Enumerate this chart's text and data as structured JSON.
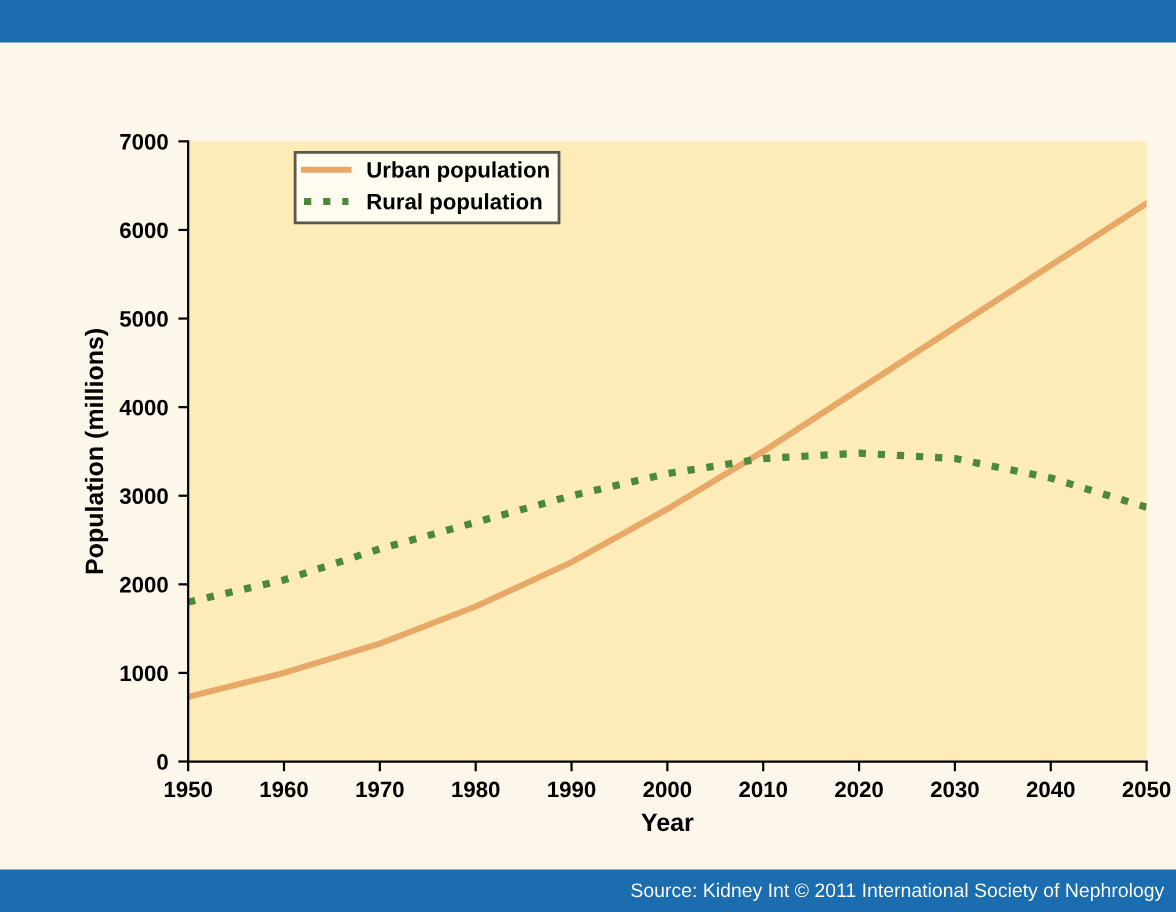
{
  "chart_data": {
    "type": "line",
    "xlabel": "Year",
    "ylabel": "Population (millions)",
    "x": [
      1950,
      1960,
      1970,
      1980,
      1990,
      2000,
      2010,
      2020,
      2030,
      2040,
      2050
    ],
    "series": [
      {
        "name": "Urban population",
        "color": "#e8a868",
        "line_style": "solid",
        "values": [
          730,
          1000,
          1330,
          1750,
          2250,
          2850,
          3500,
          4200,
          4900,
          5600,
          6300
        ]
      },
      {
        "name": "Rural population",
        "color": "#4a8a3a",
        "line_style": "dotted",
        "values": [
          1800,
          2050,
          2400,
          2700,
          3000,
          3250,
          3420,
          3480,
          3420,
          3200,
          2870
        ]
      }
    ],
    "xlim": [
      1950,
      2050
    ],
    "xticks": [
      1950,
      1960,
      1970,
      1980,
      1990,
      2000,
      2010,
      2020,
      2030,
      2040,
      2050
    ],
    "ylim": [
      0,
      7000
    ],
    "yticks": [
      0,
      1000,
      2000,
      3000,
      4000,
      5000,
      6000,
      7000
    ],
    "grid": false,
    "legend": "top left",
    "marker": "none",
    "annotations": [
      "Source: Kidney Int © 2011 International Society of Nephrology"
    ]
  }
}
